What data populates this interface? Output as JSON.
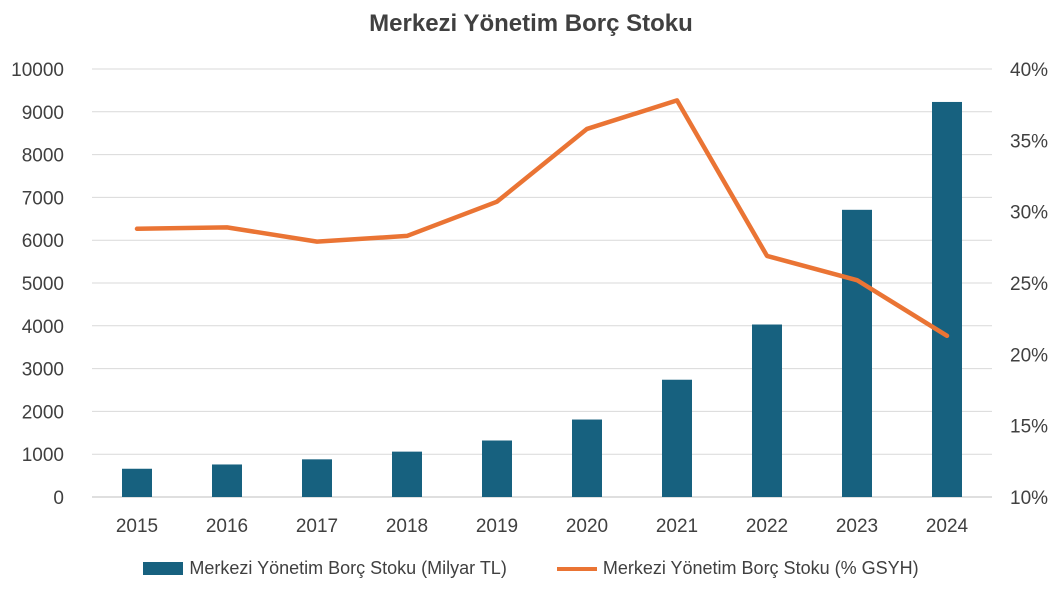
{
  "chart_data": {
    "type": "bar+line",
    "title": "Merkezi Yönetim Borç Stoku",
    "categories": [
      "2015",
      "2016",
      "2017",
      "2018",
      "2019",
      "2020",
      "2021",
      "2022",
      "2023",
      "2024"
    ],
    "series": [
      {
        "name": "Merkezi Yönetim Borç Stoku (Milyar TL)",
        "type": "bar",
        "axis": "left",
        "color": "#17617f",
        "values": [
          660,
          760,
          880,
          1060,
          1320,
          1810,
          2740,
          4030,
          6710,
          9230
        ]
      },
      {
        "name": "Merkezi Yönetim Borç Stoku (% GSYH)",
        "type": "line",
        "axis": "right",
        "color": "#ea7434",
        "values": [
          28.8,
          28.9,
          27.9,
          28.3,
          30.7,
          35.8,
          37.8,
          26.9,
          25.2,
          21.3
        ]
      }
    ],
    "y_left": {
      "min": 0,
      "max": 10000,
      "ticks": [
        "0",
        "1000",
        "2000",
        "3000",
        "4000",
        "5000",
        "6000",
        "7000",
        "8000",
        "9000",
        "10000"
      ]
    },
    "y_right": {
      "min": 10,
      "max": 40,
      "ticks": [
        "10%",
        "15%",
        "20%",
        "25%",
        "30%",
        "35%",
        "40%"
      ]
    },
    "grid": true,
    "legend": "bottom"
  }
}
